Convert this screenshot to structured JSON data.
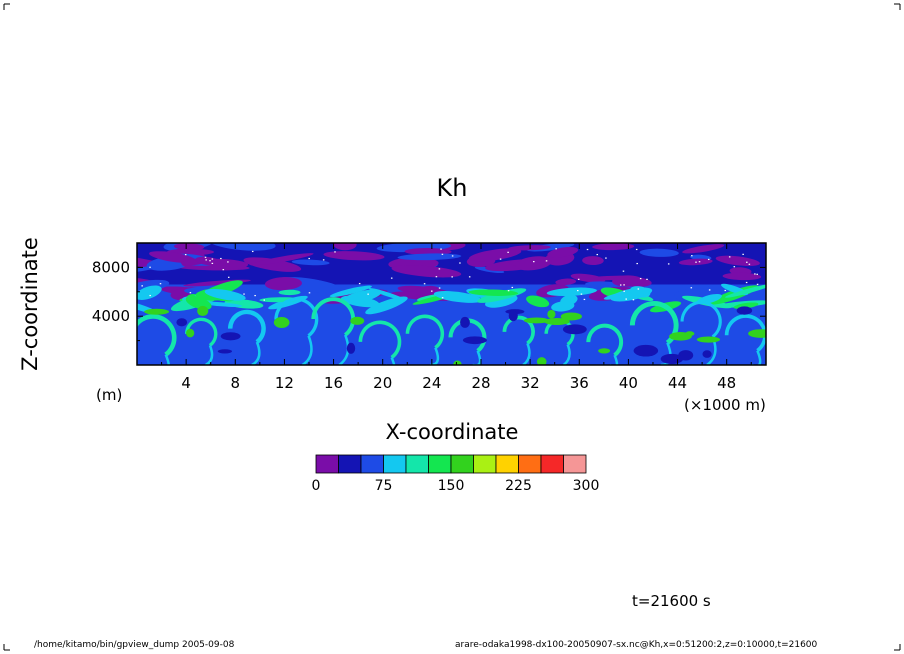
{
  "chart_data": {
    "type": "heatmap",
    "title": "Kh",
    "xlabel": "X-coordinate",
    "ylabel": "Z-coordinate",
    "x_unit": "(×1000 m)",
    "y_unit": "(m)",
    "xlim": [
      0,
      51.2
    ],
    "ylim": [
      0,
      10000
    ],
    "x_ticks": [
      "4",
      "8",
      "12",
      "16",
      "20",
      "24",
      "28",
      "32",
      "36",
      "40",
      "44",
      "48"
    ],
    "y_ticks": [
      "4000",
      "8000"
    ],
    "colorbar": {
      "levels": [
        0,
        25,
        50,
        75,
        100,
        125,
        150,
        175,
        200,
        225,
        250,
        275,
        300
      ],
      "colors": [
        "#7a0da8",
        "#1414b4",
        "#1e4be6",
        "#14c8f0",
        "#14e6aa",
        "#14e650",
        "#32d21e",
        "#aaf014",
        "#ffd200",
        "#ff6e14",
        "#f52828",
        "#f59696"
      ],
      "tick_labels": [
        "0",
        "75",
        "150",
        "225",
        "300"
      ]
    }
  },
  "time_label": "t=21600 s",
  "footer": {
    "left": "/home/kitamo/bin/gpview_dump  2005-09-08",
    "right": "arare-odaka1998-dx100-20050907-sx.nc@Kh,x=0:51200:2,z=0:10000,t=21600"
  }
}
